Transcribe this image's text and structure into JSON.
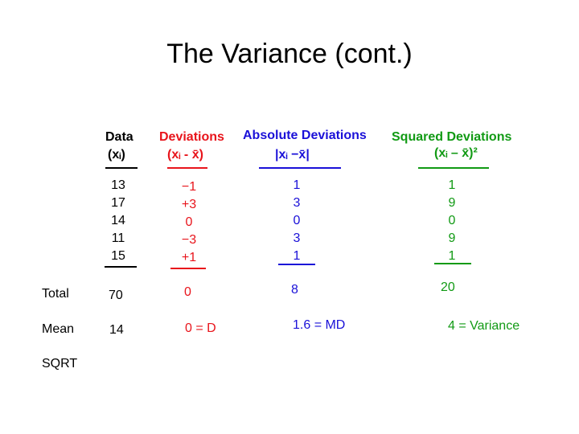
{
  "title": "The Variance (cont.)",
  "columns": {
    "data": {
      "header": "Data",
      "sub": "(xᵢ)",
      "values": [
        "13",
        "17",
        "14",
        "11",
        "15"
      ],
      "color": "#000000"
    },
    "deviations": {
      "header": "Deviations",
      "sub": "(xᵢ - x̄)",
      "values": [
        "−1",
        "+3",
        "0",
        "−3",
        "+1"
      ],
      "color": "#e8141b"
    },
    "absolute": {
      "header": "Absolute Deviations",
      "sub": "|xᵢ −x̄|",
      "values": [
        "1",
        "3",
        "0",
        "3",
        "1"
      ],
      "color": "#1a10d8"
    },
    "squared": {
      "header": "Squared Deviations",
      "sub": "(xᵢ – x̄)²",
      "values": [
        "1",
        "9",
        "0",
        "9",
        "1"
      ],
      "color": "#119a14"
    }
  },
  "rows": {
    "total": {
      "label": "Total",
      "data": "70",
      "deviations": "0",
      "absolute": "8",
      "squared": "20"
    },
    "mean": {
      "label": "Mean",
      "data": "14",
      "deviations": "0 = D",
      "absolute": "1.6 = MD",
      "squared": "4 = Variance"
    },
    "sqrt": {
      "label": "SQRT"
    }
  }
}
